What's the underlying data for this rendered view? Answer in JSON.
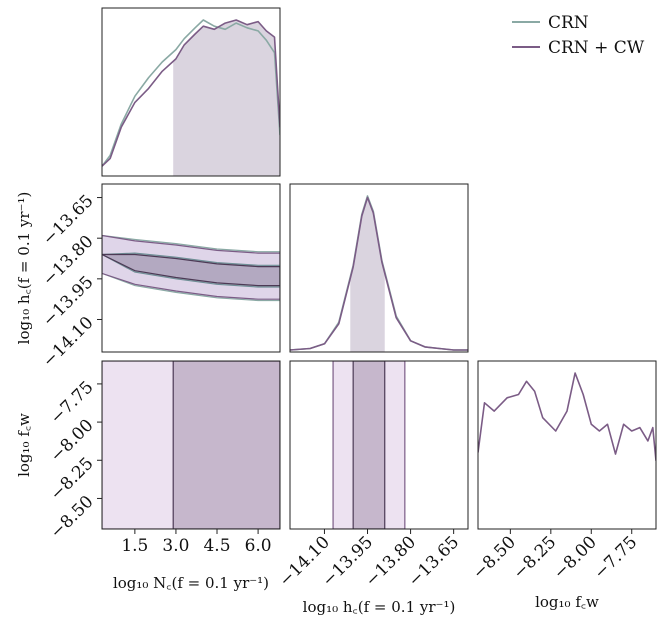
{
  "chart_data": {
    "type": "corner",
    "legend": {
      "placement": "top-right",
      "entries": [
        {
          "name": "CRN",
          "color": "#8aa9a4"
        },
        {
          "name": "CRN + CW",
          "color": "#7b5c86"
        }
      ]
    },
    "parameters": [
      {
        "key": "nc",
        "label": "log₁₀ N꜀(f = 0.1 yr⁻¹)",
        "range": [
          0.3,
          6.8
        ],
        "ticks": [
          "1.5",
          "3.0",
          "4.5",
          "6.0"
        ],
        "tick_values": [
          1.5,
          3.0,
          4.5,
          6.0
        ]
      },
      {
        "key": "hc",
        "label": "log₁₀ h꜀(f = 0.1 yr⁻¹)",
        "range": [
          -14.22,
          -13.6
        ],
        "ticks": [
          "−14.10",
          "−13.95",
          "−13.80",
          "−13.65"
        ],
        "tick_values": [
          -14.1,
          -13.95,
          -13.8,
          -13.65
        ]
      },
      {
        "key": "fcw",
        "label": "log₁₀ f꜀w",
        "range": [
          -8.7,
          -7.6
        ],
        "ticks": [
          "−8.50",
          "−8.25",
          "−8.00",
          "−7.75"
        ],
        "tick_values": [
          -8.5,
          -8.25,
          -8.0,
          -7.75
        ]
      }
    ],
    "marginals": [
      {
        "parameter": "nc",
        "x": [
          0.3,
          0.6,
          1.0,
          1.5,
          2.0,
          2.5,
          3.0,
          3.3,
          3.7,
          4.0,
          4.4,
          4.8,
          5.2,
          5.6,
          6.0,
          6.3,
          6.6,
          6.8
        ],
        "series": [
          {
            "name": "CRN",
            "density": [
              0.05,
              0.12,
              0.32,
              0.5,
              0.62,
              0.72,
              0.8,
              0.87,
              0.94,
              0.99,
              0.95,
              0.93,
              0.97,
              0.94,
              0.92,
              0.86,
              0.78,
              0.25
            ]
          },
          {
            "name": "CRN + CW",
            "density": [
              0.05,
              0.1,
              0.3,
              0.46,
              0.55,
              0.66,
              0.74,
              0.83,
              0.9,
              0.95,
              0.93,
              0.97,
              0.99,
              0.96,
              0.98,
              0.92,
              0.88,
              0.3
            ]
          }
        ],
        "shaded_interval": [
          2.9,
          6.8
        ]
      },
      {
        "parameter": "hc",
        "x": [
          -14.22,
          -14.15,
          -14.1,
          -14.05,
          -14.0,
          -13.97,
          -13.95,
          -13.93,
          -13.9,
          -13.85,
          -13.8,
          -13.75,
          -13.7,
          -13.65,
          -13.6
        ],
        "series": [
          {
            "name": "CRN",
            "density": [
              0.0,
              0.01,
              0.04,
              0.18,
              0.55,
              0.88,
              1.0,
              0.9,
              0.58,
              0.22,
              0.06,
              0.02,
              0.01,
              0.0,
              0.0
            ]
          },
          {
            "name": "CRN + CW",
            "density": [
              0.0,
              0.01,
              0.04,
              0.17,
              0.54,
              0.87,
              0.99,
              0.89,
              0.57,
              0.21,
              0.06,
              0.02,
              0.01,
              0.0,
              0.0
            ]
          }
        ],
        "shaded_interval": [
          -14.01,
          -13.89
        ]
      },
      {
        "parameter": "fcw",
        "x": [
          -8.7,
          -8.66,
          -8.6,
          -8.52,
          -8.45,
          -8.4,
          -8.35,
          -8.3,
          -8.22,
          -8.15,
          -8.1,
          -8.05,
          -8.0,
          -7.95,
          -7.9,
          -7.85,
          -7.8,
          -7.75,
          -7.7,
          -7.65,
          -7.62,
          -7.6
        ],
        "series": [
          {
            "name": "CRN + CW",
            "density": [
              0.45,
              0.75,
              0.7,
              0.78,
              0.8,
              0.88,
              0.82,
              0.66,
              0.58,
              0.7,
              0.93,
              0.8,
              0.62,
              0.58,
              0.62,
              0.44,
              0.62,
              0.58,
              0.6,
              0.52,
              0.6,
              0.4
            ]
          }
        ]
      }
    ],
    "joint": [
      {
        "x": "nc",
        "y": "hc",
        "series": [
          {
            "name": "CRN",
            "x": [
              0.3,
              1.5,
              3.0,
              4.5,
              6.0,
              6.8
            ],
            "y_center": [
              -13.86,
              -13.89,
              -13.91,
              -13.93,
              -13.94,
              -13.94
            ],
            "y_halfwidth_1sigma": [
              0.0,
              0.035,
              0.04,
              0.04,
              0.04,
              0.04
            ],
            "y_halfwidth_2sigma": [
              0.07,
              0.085,
              0.09,
              0.09,
              0.09,
              0.09
            ]
          },
          {
            "name": "CRN + CW",
            "x": [
              0.3,
              1.5,
              3.0,
              4.5,
              6.0,
              6.8
            ],
            "y_center": [
              -13.86,
              -13.89,
              -13.91,
              -13.93,
              -13.94,
              -13.94
            ],
            "y_halfwidth_1sigma": [
              0.0,
              0.03,
              0.035,
              0.035,
              0.035,
              0.035
            ],
            "y_halfwidth_2sigma": [
              0.07,
              0.08,
              0.085,
              0.085,
              0.085,
              0.085
            ]
          }
        ]
      },
      {
        "x": "nc",
        "y": "fcw",
        "series": [
          {
            "name": "CRN + CW",
            "x_1sigma": [
              2.9,
              6.8
            ],
            "x_2sigma": [
              0.3,
              6.8
            ],
            "y_extent": [
              -8.7,
              -7.6
            ]
          }
        ]
      },
      {
        "x": "hc",
        "y": "fcw",
        "series": [
          {
            "name": "CRN + CW",
            "x_1sigma": [
              -14.0,
              -13.89
            ],
            "x_2sigma": [
              -14.07,
              -13.82
            ],
            "y_extent": [
              -8.7,
              -7.6
            ]
          }
        ]
      }
    ]
  }
}
